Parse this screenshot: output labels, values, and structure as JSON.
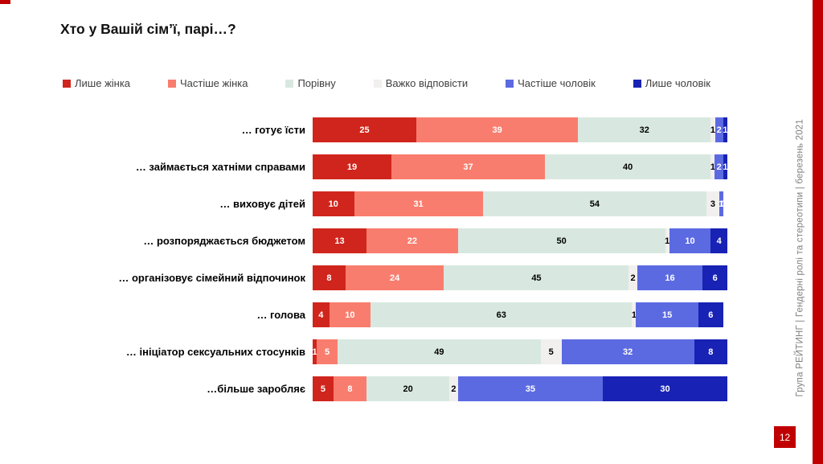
{
  "slide": {
    "title": "Хто у Вашій сім’ї, парі…?",
    "page_number": "12",
    "sidebar_caption": "Група РЕЙТИНГ | Гендерні ролі та стереотипи | березень 2021",
    "accent_color": "#c00000"
  },
  "chart_data": {
    "type": "bar",
    "orientation": "horizontal",
    "stacked": true,
    "title": "Хто у Вашій сім’ї, парі…?",
    "xlabel": "",
    "ylabel": "",
    "xlim": [
      0,
      100
    ],
    "grid": false,
    "legend_position": "top",
    "categories": [
      "… готує їсти",
      "… займається хатніми справами",
      "… виховує дітей",
      "… розпоряджається бюджетом",
      "… організовує сімейний відпочинок",
      "… голова",
      "… ініціатор сексуальних стосунків",
      "…більше заробляє"
    ],
    "series": [
      {
        "name": "Лише жінка",
        "color": "#d0251c",
        "text_color": "#ffffff",
        "values": [
          25,
          19,
          10,
          13,
          8,
          4,
          1,
          5
        ]
      },
      {
        "name": "Частіше  жінка",
        "color": "#f97d6e",
        "text_color": "#ffffff",
        "values": [
          39,
          37,
          31,
          22,
          24,
          10,
          5,
          8
        ]
      },
      {
        "name": "Порівну",
        "color": "#d8e8e0",
        "text_color": "#000000",
        "values": [
          32,
          40,
          54,
          50,
          45,
          63,
          49,
          20
        ]
      },
      {
        "name": "Важко відповісти",
        "color": "#f1f0ee",
        "text_color": "#000000",
        "values": [
          1,
          1,
          3,
          1,
          2,
          1,
          5,
          2
        ]
      },
      {
        "name": "Частіше  чоловік",
        "color": "#5c6ae2",
        "text_color": "#ffffff",
        "values": [
          2,
          2,
          1,
          10,
          16,
          15,
          32,
          35
        ]
      },
      {
        "name": "Лише чоловік",
        "color": "#1822b4",
        "text_color": "#ffffff",
        "values": [
          1,
          1,
          0,
          4,
          6,
          6,
          8,
          30
        ]
      }
    ]
  }
}
